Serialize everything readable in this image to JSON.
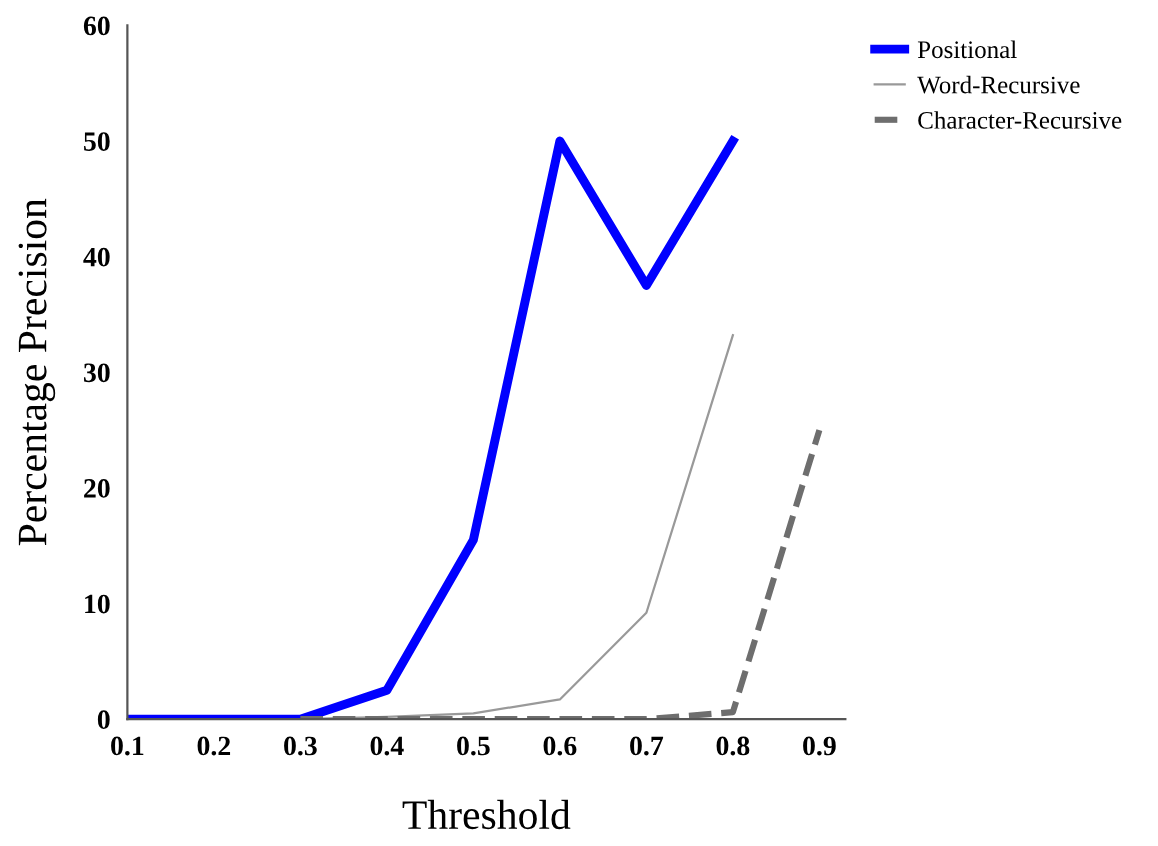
{
  "chart_data": {
    "type": "line",
    "xlabel": "Threshold",
    "ylabel": "Percentage Precision",
    "xlim": [
      0.1,
      0.93
    ],
    "xticks": [
      0.1,
      0.2,
      0.3,
      0.4,
      0.5,
      0.6,
      0.7,
      0.8,
      0.9
    ],
    "ylim": [
      0,
      60
    ],
    "yticks": [
      0,
      10,
      20,
      30,
      40,
      50,
      60
    ],
    "grid": false,
    "legend": "top right",
    "series": [
      {
        "name": "Positional",
        "color": "#0000ff",
        "line_style": "solid",
        "x": [
          0.1,
          0.2,
          0.3,
          0.4,
          0.5,
          0.6,
          0.7,
          0.8
        ],
        "values": [
          0,
          0,
          0,
          2.5,
          15.5,
          50,
          37.5,
          50
        ]
      },
      {
        "name": "Word-Recursive",
        "color": "#999999",
        "line_style": "solid",
        "x": [
          0.1,
          0.2,
          0.3,
          0.4,
          0.5,
          0.6,
          0.7,
          0.8
        ],
        "values": [
          0,
          0,
          0,
          0.2,
          0.5,
          1.7,
          9.2,
          33.2
        ]
      },
      {
        "name": "Character-Recursive",
        "color": "#6e6e6e",
        "line_style": "dashed",
        "x": [
          0.3,
          0.4,
          0.5,
          0.6,
          0.7,
          0.8,
          0.9
        ],
        "values": [
          0,
          0,
          0,
          0,
          0,
          0.6,
          25
        ]
      }
    ]
  }
}
